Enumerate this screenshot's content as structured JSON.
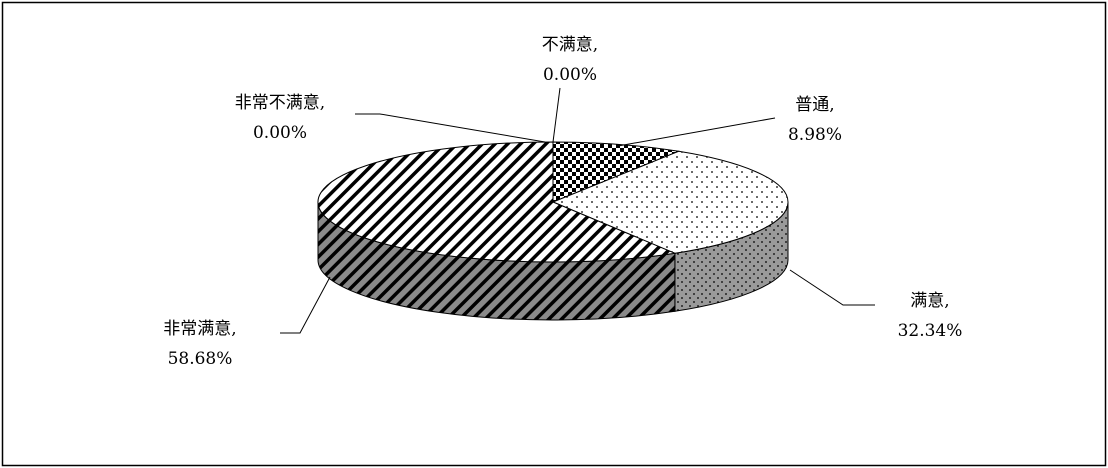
{
  "chart_data": {
    "type": "pie",
    "style": "3d",
    "categories": [
      "不满意",
      "普通",
      "满意",
      "非常满意",
      "非常不满意"
    ],
    "values": [
      0.0,
      8.98,
      32.34,
      58.68,
      0.0
    ],
    "value_labels": [
      "0.00%",
      "8.98%",
      "32.34%",
      "58.68%",
      "0.00%"
    ],
    "label_names": [
      "不满意,",
      "普通,",
      "满意,",
      "非常满意,",
      "非常不满意,"
    ],
    "title": "",
    "legend": "none"
  },
  "slice_fills": [
    "#000000",
    "#000000",
    "#ffffff",
    "#ffffff",
    "#000000"
  ],
  "slice_patterns": [
    "checker",
    "checker",
    "dots",
    "stripes",
    "stripes"
  ]
}
